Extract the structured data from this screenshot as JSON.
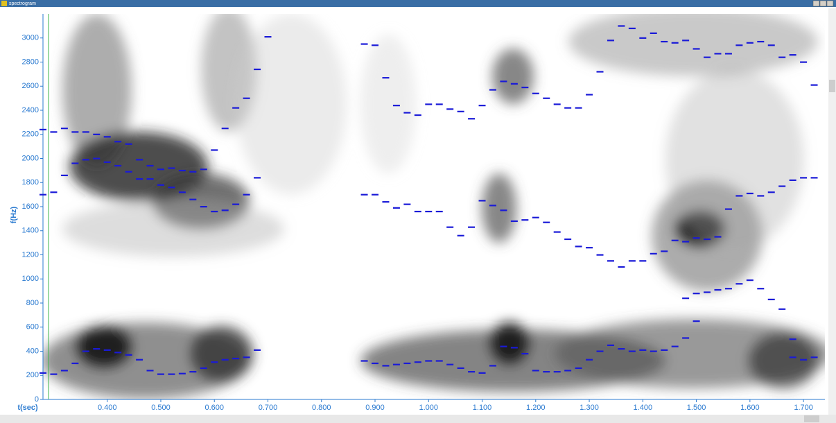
{
  "window": {
    "title": "spectrogram"
  },
  "chart_data": {
    "type": "scatter",
    "xlabel": "t(sec)",
    "ylabel": "f(Hz)",
    "xlim": [
      0.28,
      1.74
    ],
    "ylim": [
      0,
      3200
    ],
    "xticks": [
      {
        "value": 0.4,
        "label": "0.400"
      },
      {
        "value": 0.5,
        "label": "0.500"
      },
      {
        "value": 0.6,
        "label": "0.600"
      },
      {
        "value": 0.7,
        "label": "0.700"
      },
      {
        "value": 0.8,
        "label": "0.800"
      },
      {
        "value": 0.9,
        "label": "0.900"
      },
      {
        "value": 1.0,
        "label": "1.000"
      },
      {
        "value": 1.1,
        "label": "1.100"
      },
      {
        "value": 1.2,
        "label": "1.200"
      },
      {
        "value": 1.3,
        "label": "1.300"
      },
      {
        "value": 1.4,
        "label": "1.400"
      },
      {
        "value": 1.5,
        "label": "1.500"
      },
      {
        "value": 1.6,
        "label": "1.600"
      },
      {
        "value": 1.7,
        "label": "1.700"
      }
    ],
    "yticks": [
      0,
      200,
      400,
      600,
      800,
      1000,
      1200,
      1400,
      1600,
      1800,
      2000,
      2200,
      2400,
      2600,
      2800,
      3000
    ],
    "series": [
      {
        "color": "#1a1ad8",
        "x": [
          0.28,
          0.3,
          0.32,
          0.34,
          0.36,
          0.38,
          0.4,
          0.42,
          0.44,
          0.46,
          0.48,
          0.5,
          0.52,
          0.54,
          0.56,
          0.58,
          0.6,
          0.62,
          0.64,
          0.66,
          0.68,
          0.88,
          0.9,
          0.92,
          0.94,
          0.96,
          0.98,
          1.0,
          1.02,
          1.04,
          1.06,
          1.08,
          1.1,
          1.12,
          1.14,
          1.16,
          1.18,
          1.2,
          1.22,
          1.24,
          1.26,
          1.28,
          1.3,
          1.32,
          1.34,
          1.36,
          1.38,
          1.4,
          1.42,
          1.44,
          1.46,
          1.48,
          1.5,
          1.68,
          1.7,
          1.72
        ],
        "values": [
          220,
          210,
          240,
          300,
          400,
          420,
          410,
          390,
          370,
          330,
          240,
          210,
          210,
          215,
          230,
          260,
          310,
          330,
          340,
          350,
          410,
          320,
          300,
          280,
          290,
          300,
          310,
          320,
          320,
          290,
          260,
          230,
          220,
          280,
          440,
          430,
          380,
          240,
          230,
          230,
          240,
          260,
          330,
          400,
          450,
          420,
          400,
          410,
          400,
          410,
          440,
          510,
          650,
          350,
          330,
          350
        ]
      },
      {
        "color": "#1a1ad8",
        "x": [
          0.28,
          0.3,
          0.32,
          0.34,
          0.36,
          0.38,
          0.4,
          0.42,
          0.44,
          0.46,
          0.48,
          0.5,
          0.52,
          0.54,
          0.56,
          0.58,
          0.6,
          0.62,
          0.64,
          0.66,
          0.68,
          0.88,
          0.9,
          0.92,
          0.94,
          0.96,
          0.98,
          1.0,
          1.02,
          1.04,
          1.06,
          1.08,
          1.1,
          1.12,
          1.14,
          1.16,
          1.18,
          1.2,
          1.22,
          1.24,
          1.26,
          1.28,
          1.3,
          1.32,
          1.34,
          1.36,
          1.38,
          1.4,
          1.42,
          1.44,
          1.46,
          1.48,
          1.5,
          1.52,
          1.54,
          1.56,
          1.58,
          1.6,
          1.62,
          1.64,
          1.66,
          1.68,
          1.7,
          1.72
        ],
        "values": [
          1700,
          1720,
          1860,
          1960,
          1990,
          2000,
          1970,
          1940,
          1890,
          1830,
          1830,
          1780,
          1760,
          1720,
          1660,
          1600,
          1560,
          1570,
          1620,
          1700,
          1840,
          1700,
          1700,
          1640,
          1590,
          1620,
          1560,
          1560,
          1560,
          1430,
          1360,
          1430,
          1650,
          1610,
          1570,
          1480,
          1490,
          1510,
          1470,
          1390,
          1330,
          1270,
          1260,
          1200,
          1150,
          1100,
          1150,
          1150,
          1210,
          1230,
          1320,
          1310,
          1340,
          1330,
          1350,
          1580,
          1690,
          1710,
          1690,
          1720,
          1770,
          1820,
          1840,
          1840
        ]
      },
      {
        "color": "#1a1ad8",
        "x": [
          0.28,
          0.3,
          0.32,
          0.34,
          0.36,
          0.38,
          0.4,
          0.42,
          0.44,
          0.46,
          0.48,
          0.5,
          0.52,
          0.54,
          0.56,
          0.58,
          0.6,
          0.62,
          0.64,
          0.66,
          0.68,
          0.7,
          0.88,
          0.9,
          0.92,
          0.94,
          0.96,
          0.98,
          1.0,
          1.02,
          1.04,
          1.06,
          1.08,
          1.1,
          1.12,
          1.14,
          1.16,
          1.18,
          1.2,
          1.22,
          1.24,
          1.26,
          1.28,
          1.3,
          1.32,
          1.34,
          1.36,
          1.38,
          1.4,
          1.42,
          1.44,
          1.46,
          1.48,
          1.5,
          1.52,
          1.54,
          1.56,
          1.58,
          1.6,
          1.62,
          1.64,
          1.66,
          1.68,
          1.7,
          1.72
        ],
        "values": [
          2240,
          2220,
          2250,
          2220,
          2220,
          2200,
          2180,
          2140,
          2120,
          1990,
          1940,
          1910,
          1920,
          1900,
          1890,
          1910,
          2070,
          2250,
          2420,
          2500,
          2740,
          3010,
          2950,
          2940,
          2670,
          2440,
          2380,
          2360,
          2450,
          2450,
          2410,
          2390,
          2330,
          2440,
          2570,
          2640,
          2620,
          2590,
          2540,
          2500,
          2450,
          2420,
          2420,
          2530,
          2720,
          2980,
          3100,
          3080,
          3000,
          3040,
          2970,
          2960,
          2980,
          2910,
          2840,
          2870,
          2870,
          2940,
          2960,
          2970,
          2940,
          2840,
          2860,
          2800,
          2610
        ]
      },
      {
        "color": "#1a1ad8",
        "x": [
          1.48,
          1.5,
          1.52,
          1.54,
          1.56,
          1.58,
          1.6,
          1.62,
          1.64,
          1.66,
          1.68
        ],
        "values": [
          840,
          880,
          890,
          910,
          920,
          960,
          990,
          920,
          830,
          750,
          500
        ]
      }
    ]
  }
}
